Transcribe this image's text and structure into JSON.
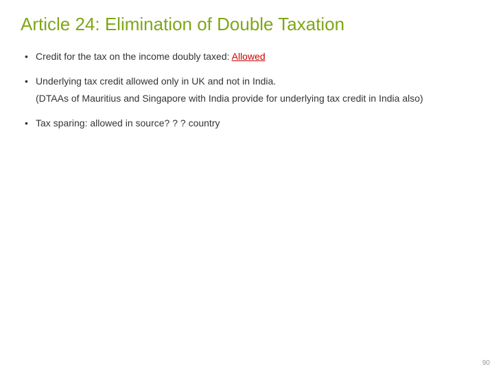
{
  "slide": {
    "title": "Article 24: Elimination of Double Taxation",
    "title_color": "#7fa616",
    "bullets": [
      {
        "prefix": "Credit for the tax on the income doubly taxed: ",
        "emphasis": "Allowed",
        "emphasis_color": "#cc0000"
      },
      {
        "text": "Underlying tax credit allowed only in UK and not in India."
      },
      {
        "text": "Tax sparing: allowed in source? ? ? country"
      }
    ],
    "sub_note": "(DTAAs of Mauritius and Singapore with India provide for underlying tax credit in India also)",
    "body_text_color": "#333333",
    "page_number": "90",
    "page_number_color": "#999999",
    "background_color": "#ffffff"
  }
}
